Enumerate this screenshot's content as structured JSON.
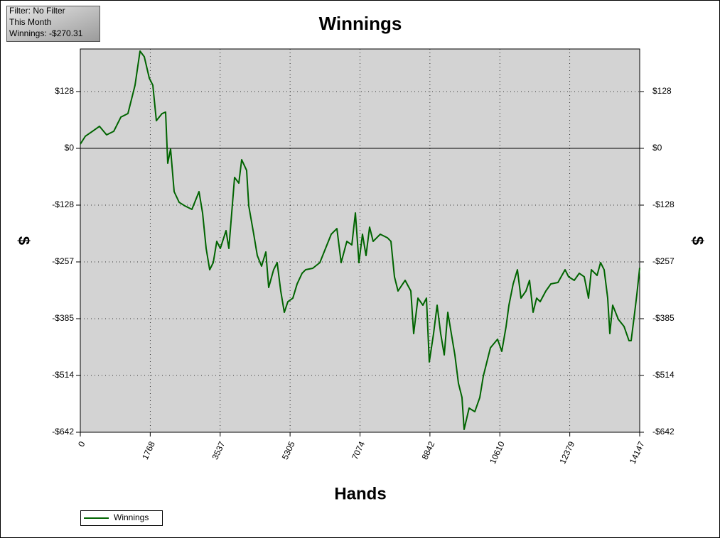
{
  "chart_data": {
    "type": "line",
    "title": "Winnings",
    "x_label": "Hands",
    "y_label": "$",
    "info": [
      "Filter: No Filter",
      "This Month",
      "Winnings: -$270.31"
    ],
    "xlim": [
      0,
      14147
    ],
    "xticks": [
      0,
      1768,
      3537,
      5305,
      7074,
      8842,
      10610,
      12379,
      14147
    ],
    "ylim": [
      -642,
      224.7
    ],
    "yticks": [
      {
        "value": 128.4,
        "label": "$128"
      },
      {
        "value": 0,
        "label": "$0"
      },
      {
        "value": -128.4,
        "label": "-$128"
      },
      {
        "value": -256.8,
        "label": "-$257"
      },
      {
        "value": -385.2,
        "label": "-$385"
      },
      {
        "value": -513.6,
        "label": "-$514"
      },
      {
        "value": -642,
        "label": "-$642"
      }
    ],
    "grid": true,
    "legend": "bottom-left",
    "x": [
      0,
      126,
      306,
      485,
      665,
      845,
      1025,
      1204,
      1384,
      1510,
      1618,
      1744,
      1834,
      1923,
      2067,
      2157,
      2211,
      2283,
      2373,
      2499,
      2642,
      2822,
      3002,
      3092,
      3182,
      3272,
      3362,
      3451,
      3541,
      3685,
      3757,
      3901,
      4009,
      4081,
      4206,
      4260,
      4386,
      4476,
      4584,
      4692,
      4764,
      4889,
      4979,
      5069,
      5159,
      5249,
      5375,
      5483,
      5609,
      5698,
      5878,
      6058,
      6202,
      6346,
      6489,
      6597,
      6741,
      6867,
      6957,
      7047,
      7136,
      7226,
      7316,
      7406,
      7586,
      7766,
      7856,
      7945,
      8035,
      8215,
      8359,
      8431,
      8539,
      8664,
      8754,
      8826,
      8934,
      9024,
      9114,
      9204,
      9294,
      9383,
      9473,
      9563,
      9653,
      9707,
      9833,
      9977,
      10103,
      10192,
      10282,
      10372,
      10552,
      10660,
      10768,
      10840,
      10947,
      11055,
      11145,
      11271,
      11361,
      11451,
      11541,
      11630,
      11774,
      11900,
      12080,
      12260,
      12350,
      12493,
      12619,
      12745,
      12853,
      12925,
      13069,
      13158,
      13248,
      13338,
      13392,
      13464,
      13608,
      13752,
      13877,
      13931,
      14021,
      14075,
      14147
    ],
    "series": [
      {
        "name": "Winnings",
        "color": "#006400",
        "values": [
          9.6,
          27.3,
          38.5,
          49.8,
          30.5,
          38.5,
          70.6,
          78.6,
          142.8,
          219.9,
          207.0,
          158.9,
          142.8,
          62.6,
          78.6,
          81.9,
          -33.7,
          -1.6,
          -97.9,
          -122.0,
          -130.0,
          -138.0,
          -97.9,
          -146.1,
          -226.3,
          -274.5,
          -258.4,
          -210.3,
          -226.3,
          -186.2,
          -226.3,
          -65.8,
          -78.6,
          -25.7,
          -49.8,
          -130.0,
          -194.2,
          -242.4,
          -266.4,
          -234.3,
          -314.6,
          -274.5,
          -258.4,
          -322.6,
          -370.8,
          -346.7,
          -338.7,
          -306.6,
          -282.5,
          -274.5,
          -271.2,
          -258.4,
          -226.3,
          -194.2,
          -181.4,
          -258.4,
          -210.3,
          -218.3,
          -146.1,
          -258.4,
          -194.2,
          -242.4,
          -178.2,
          -210.3,
          -194.2,
          -202.2,
          -210.3,
          -290.5,
          -322.6,
          -298.5,
          -322.6,
          -418.9,
          -338.7,
          -354.7,
          -338.7,
          -483.1,
          -418.9,
          -354.7,
          -418.9,
          -467.1,
          -370.8,
          -418.9,
          -467.1,
          -531.3,
          -563.4,
          -635.6,
          -587.4,
          -595.5,
          -563.4,
          -515.2,
          -483.1,
          -451.0,
          -431.7,
          -459.0,
          -402.9,
          -354.7,
          -306.6,
          -274.5,
          -338.7,
          -322.6,
          -298.5,
          -370.8,
          -338.7,
          -346.7,
          -322.6,
          -306.6,
          -303.3,
          -274.5,
          -290.5,
          -298.5,
          -282.5,
          -290.5,
          -338.7,
          -274.5,
          -287.3,
          -258.4,
          -274.5,
          -338.7,
          -418.9,
          -354.7,
          -386.8,
          -402.9,
          -435.0,
          -435.0,
          -370.8,
          -330.6,
          -270.31
        ]
      }
    ]
  }
}
